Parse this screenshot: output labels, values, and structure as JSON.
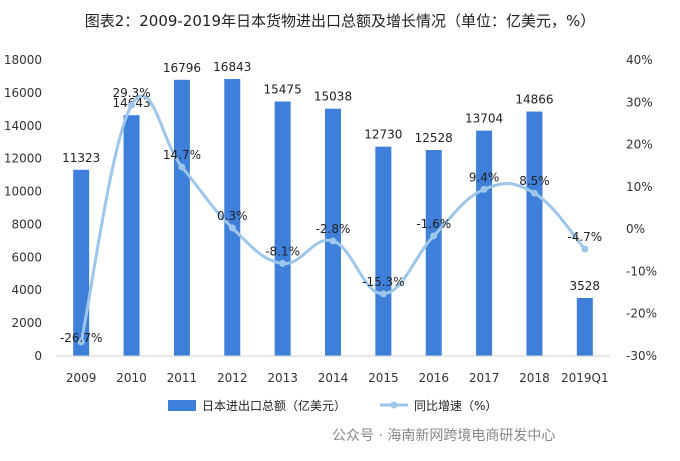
{
  "page": {
    "title": "图表2：2009-2019年日本货物进出口总额及增长情况（单位：亿美元，%）",
    "watermark": "公众号 · 海南新网跨境电商研发中心"
  },
  "chart_data": {
    "type": "bar",
    "categories": [
      "2009",
      "2010",
      "2011",
      "2012",
      "2013",
      "2014",
      "2015",
      "2016",
      "2017",
      "2018",
      "2019Q1"
    ],
    "series": [
      {
        "name": "日本进出口总额（亿美元）",
        "type": "bar",
        "axis": "left",
        "values": [
          11323,
          14643,
          16796,
          16843,
          15475,
          15038,
          12730,
          12528,
          13704,
          14866,
          3528
        ],
        "labels": [
          "11323",
          "14643",
          "16796",
          "16843",
          "15475",
          "15038",
          "12730",
          "12528",
          "13704",
          "14866",
          "3528"
        ],
        "color": "#3d7fd9"
      },
      {
        "name": "同比增速（%）",
        "type": "line",
        "axis": "right",
        "values": [
          -26.7,
          29.3,
          14.7,
          0.3,
          -8.1,
          -2.8,
          -15.3,
          -1.6,
          9.4,
          8.5,
          -4.7
        ],
        "labels": [
          "-26.7%",
          "29.3%",
          "14.7%",
          "0.3%",
          "-8.1%",
          "-2.8%",
          "-15.3%",
          "-1.6%",
          "9.4%",
          "8.5%",
          "-4.7%"
        ],
        "color": "#9ec6ea"
      }
    ],
    "y_left": {
      "min": 0,
      "max": 18000,
      "ticks": [
        "0",
        "2000",
        "4000",
        "6000",
        "8000",
        "10000",
        "12000",
        "14000",
        "16000",
        "18000"
      ]
    },
    "y_right": {
      "min": -30,
      "max": 40,
      "ticks": [
        "-30%",
        "-20%",
        "-10%",
        "0%",
        "10%",
        "20%",
        "30%",
        "40%"
      ]
    },
    "legend_position": "bottom",
    "grid": false
  }
}
